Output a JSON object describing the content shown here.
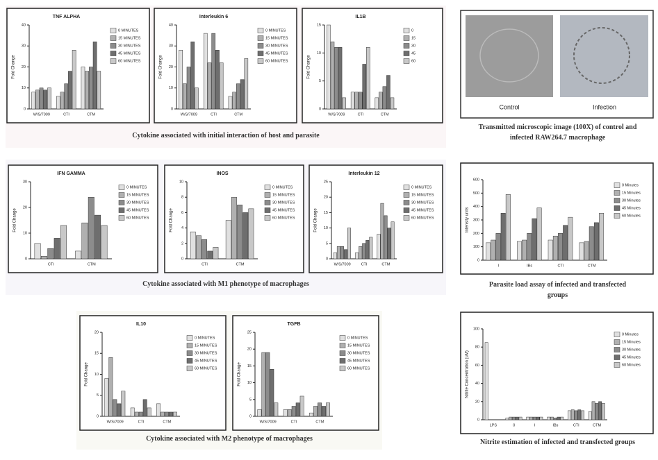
{
  "captions": [
    "Cytokine associated with initial interaction of host and parasite",
    "Cytokine associated with M1 phenotype of macrophages",
    "Cytokine associated with M2 phenotype of macrophages",
    "Transmitted microscopic image (100X) of control and infected RAW264.7 macrophage",
    "Parasite load assay of infected and transfected groups",
    "Nitrite estimation of infected and transfected groups"
  ],
  "microscopy": {
    "labels": [
      "Control",
      "Infection"
    ]
  },
  "chart_data": [
    {
      "type": "bar",
      "title": "TNF ALPHA",
      "y_label": "Fold Change",
      "categories": [
        "W/S/7009",
        "CTI",
        "CTM"
      ],
      "series": [
        {
          "name": "0 MINUTES",
          "color": "#e0e0e0",
          "values": [
            8,
            6,
            20
          ]
        },
        {
          "name": "15 MINUTES",
          "color": "#b0b0b0",
          "values": [
            9,
            8,
            18
          ]
        },
        {
          "name": "30 MINUTES",
          "color": "#8c8c8c",
          "values": [
            10,
            12,
            20
          ]
        },
        {
          "name": "45 MINUTES",
          "color": "#6e6e6e",
          "values": [
            9,
            18,
            32
          ]
        },
        {
          "name": "60 MINUTES",
          "color": "#c8c8c8",
          "values": [
            10,
            28,
            18
          ]
        }
      ],
      "ylim": [
        0,
        40
      ],
      "yticks": [
        0,
        10,
        20,
        30,
        40
      ]
    },
    {
      "type": "bar",
      "title": "Interleukin 6",
      "y_label": "Fold Change",
      "categories": [
        "W/S/7009",
        "CTI",
        "CTM"
      ],
      "series": [
        {
          "name": "0 MINUTES",
          "color": "#e0e0e0",
          "values": [
            28,
            36,
            6
          ]
        },
        {
          "name": "15 MINUTES",
          "color": "#b0b0b0",
          "values": [
            12,
            22,
            8
          ]
        },
        {
          "name": "30 MINUTES",
          "color": "#8c8c8c",
          "values": [
            20,
            36,
            12
          ]
        },
        {
          "name": "45 MINUTES",
          "color": "#6e6e6e",
          "values": [
            32,
            28,
            14
          ]
        },
        {
          "name": "60 MINUTES",
          "color": "#c8c8c8",
          "values": [
            10,
            22,
            24
          ]
        }
      ],
      "ylim": [
        0,
        40
      ],
      "yticks": [
        0,
        10,
        20,
        30,
        40
      ]
    },
    {
      "type": "bar",
      "title": "IL1B",
      "y_label": "Fold Change",
      "categories": [
        "W/S/7009",
        "CTI",
        "CTM"
      ],
      "series": [
        {
          "name": "0",
          "color": "#e0e0e0",
          "values": [
            15,
            3,
            2
          ]
        },
        {
          "name": "15",
          "color": "#b0b0b0",
          "values": [
            12,
            3,
            3
          ]
        },
        {
          "name": "30",
          "color": "#8c8c8c",
          "values": [
            11,
            3,
            4
          ]
        },
        {
          "name": "45",
          "color": "#6e6e6e",
          "values": [
            11,
            8,
            6
          ]
        },
        {
          "name": "60",
          "color": "#c8c8c8",
          "values": [
            2,
            11,
            2
          ]
        }
      ],
      "ylim": [
        0,
        15
      ],
      "yticks": [
        0,
        5,
        10,
        15
      ]
    },
    {
      "type": "bar",
      "title": "IFN GAMMA",
      "y_label": "Fold Change",
      "categories": [
        "CTI",
        "CTM"
      ],
      "series": [
        {
          "name": "0 MINUTES",
          "color": "#e0e0e0",
          "values": [
            6,
            3
          ]
        },
        {
          "name": "15 MINUTES",
          "color": "#b0b0b0",
          "values": [
            1,
            14
          ]
        },
        {
          "name": "30 MINUTES",
          "color": "#8c8c8c",
          "values": [
            4,
            24
          ]
        },
        {
          "name": "45 MINUTES",
          "color": "#6e6e6e",
          "values": [
            8,
            17
          ]
        },
        {
          "name": "60 MINUTES",
          "color": "#c8c8c8",
          "values": [
            13,
            13
          ]
        }
      ],
      "ylim": [
        0,
        30
      ],
      "yticks": [
        0,
        10,
        20,
        30
      ]
    },
    {
      "type": "bar",
      "title": "INOS",
      "y_label": "Fold Change",
      "categories": [
        "CTI",
        "CTM"
      ],
      "series": [
        {
          "name": "0 MINUTES",
          "color": "#e0e0e0",
          "values": [
            3.5,
            5
          ]
        },
        {
          "name": "15 MINUTES",
          "color": "#b0b0b0",
          "values": [
            3,
            8
          ]
        },
        {
          "name": "30 MINUTES",
          "color": "#8c8c8c",
          "values": [
            2.5,
            7
          ]
        },
        {
          "name": "45 MINUTES",
          "color": "#6e6e6e",
          "values": [
            1,
            6
          ]
        },
        {
          "name": "60 MINUTES",
          "color": "#c8c8c8",
          "values": [
            1.5,
            6.5
          ]
        }
      ],
      "ylim": [
        0,
        10
      ],
      "yticks": [
        0,
        2,
        4,
        6,
        8,
        10
      ]
    },
    {
      "type": "bar",
      "title": "Interleukin 12",
      "y_label": "Fold Change",
      "categories": [
        "W/S/7009",
        "CTI",
        "CTM"
      ],
      "series": [
        {
          "name": "0 MINUTES",
          "color": "#e0e0e0",
          "values": [
            2,
            2,
            8
          ]
        },
        {
          "name": "15 MINUTES",
          "color": "#b0b0b0",
          "values": [
            4,
            4,
            18
          ]
        },
        {
          "name": "30 MINUTES",
          "color": "#8c8c8c",
          "values": [
            4,
            5,
            14
          ]
        },
        {
          "name": "45 MINUTES",
          "color": "#6e6e6e",
          "values": [
            3,
            6,
            10
          ]
        },
        {
          "name": "60 MINUTES",
          "color": "#c8c8c8",
          "values": [
            10,
            7,
            12
          ]
        }
      ],
      "ylim": [
        0,
        25
      ],
      "yticks": [
        0,
        5,
        10,
        15,
        20,
        25
      ]
    },
    {
      "type": "bar",
      "title": "IL10",
      "y_label": "Fold Change",
      "categories": [
        "W/S/7009",
        "CTI",
        "CTM"
      ],
      "series": [
        {
          "name": "0 MINUTES",
          "color": "#e0e0e0",
          "values": [
            9,
            2,
            3
          ]
        },
        {
          "name": "15 MINUTES",
          "color": "#b0b0b0",
          "values": [
            14,
            1,
            1
          ]
        },
        {
          "name": "30 MINUTES",
          "color": "#8c8c8c",
          "values": [
            4,
            1,
            1
          ]
        },
        {
          "name": "45 MINUTES",
          "color": "#6e6e6e",
          "values": [
            3,
            4,
            1
          ]
        },
        {
          "name": "60 MINUTES",
          "color": "#c8c8c8",
          "values": [
            6,
            2,
            1
          ]
        }
      ],
      "ylim": [
        0,
        20
      ],
      "yticks": [
        0,
        5,
        10,
        15,
        20
      ]
    },
    {
      "type": "bar",
      "title": "TGFB",
      "y_label": "Fold Change",
      "categories": [
        "W/S/7009",
        "CTI",
        "CTM"
      ],
      "series": [
        {
          "name": "0 MINUTES",
          "color": "#e0e0e0",
          "values": [
            2,
            2,
            1
          ]
        },
        {
          "name": "15 MINUTES",
          "color": "#b0b0b0",
          "values": [
            19,
            2,
            3
          ]
        },
        {
          "name": "30 MINUTES",
          "color": "#8c8c8c",
          "values": [
            19,
            3,
            4
          ]
        },
        {
          "name": "45 MINUTES",
          "color": "#6e6e6e",
          "values": [
            14,
            4,
            3
          ]
        },
        {
          "name": "60 MINUTES",
          "color": "#c8c8c8",
          "values": [
            4,
            6,
            4
          ]
        }
      ],
      "ylim": [
        0,
        25
      ],
      "yticks": [
        0,
        5,
        10,
        15,
        20,
        25
      ]
    },
    {
      "type": "bar",
      "y_label": "Intensity units",
      "categories": [
        "I",
        "IBs",
        "CTI",
        "CTM"
      ],
      "series": [
        {
          "name": "0 Minutes",
          "color": "#e0e0e0",
          "values": [
            130,
            140,
            150,
            130
          ]
        },
        {
          "name": "15 Minutes",
          "color": "#b0b0b0",
          "values": [
            150,
            150,
            180,
            140
          ]
        },
        {
          "name": "30 Minutes",
          "color": "#8c8c8c",
          "values": [
            200,
            200,
            200,
            250
          ]
        },
        {
          "name": "45 Minutes",
          "color": "#6e6e6e",
          "values": [
            350,
            310,
            260,
            280
          ]
        },
        {
          "name": "60 Minutes",
          "color": "#c8c8c8",
          "values": [
            490,
            390,
            320,
            350
          ]
        }
      ],
      "ylim": [
        0,
        600
      ],
      "yticks": [
        0,
        100,
        200,
        300,
        400,
        500,
        600
      ]
    },
    {
      "type": "bar",
      "y_label": "Nitrite Concentration (uM)",
      "categories": [
        "LPS",
        "0",
        "I",
        "IBs",
        "CTI",
        "CTM"
      ],
      "series": [
        {
          "name": "0 Minutes",
          "color": "#e0e0e0",
          "values": [
            85,
            2,
            3,
            3,
            10,
            9
          ]
        },
        {
          "name": "15 Minutes",
          "color": "#b0b0b0",
          "values": [
            0,
            3,
            3,
            3,
            11,
            20
          ]
        },
        {
          "name": "30 Minutes",
          "color": "#8c8c8c",
          "values": [
            0,
            3,
            3,
            2,
            10,
            18
          ]
        },
        {
          "name": "45 Minutes",
          "color": "#6e6e6e",
          "values": [
            0,
            3,
            3,
            3,
            11,
            20
          ]
        },
        {
          "name": "60 Minutes",
          "color": "#c8c8c8",
          "values": [
            0,
            3,
            3,
            3,
            10,
            18
          ]
        }
      ],
      "ylim": [
        0,
        100
      ],
      "yticks": [
        0,
        20,
        40,
        60,
        80,
        100
      ]
    }
  ]
}
